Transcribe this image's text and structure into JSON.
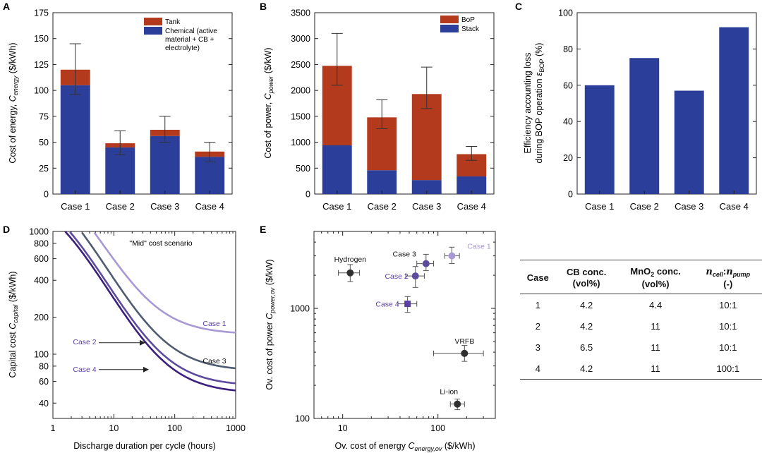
{
  "colors": {
    "stack_blue": "#2b3e9a",
    "top_red": "#b33a1c",
    "scatter_dark": "#2f2f2f",
    "line_case1": "#a898d4",
    "line_case2": "#5c4a9c",
    "line_case3": "#4e5b70",
    "line_case4": "#3b1f7e",
    "label_purple": "#5b3fa6"
  },
  "chart_data": [
    {
      "panel": "A",
      "type": "bar",
      "stacked": true,
      "categories": [
        "Case 1",
        "Case 2",
        "Case 3",
        "Case 4"
      ],
      "series": [
        {
          "name": "Chemical (active material + CB + electrolyte)",
          "values": [
            105,
            45,
            56,
            36
          ]
        },
        {
          "name": "Tank",
          "values": [
            15,
            4,
            6,
            5
          ]
        }
      ],
      "error_low": [
        96,
        38,
        50,
        31
      ],
      "error_high": [
        145,
        61,
        75,
        50
      ],
      "legend": [
        {
          "label": "Tank"
        },
        {
          "label": "Chemical (active"
        },
        {
          "label": "material + CB +"
        },
        {
          "label": "electrolyte)"
        }
      ],
      "ylabel": "Cost of energy,",
      "ylabel_var": "C",
      "ylabel_sub": "energy",
      "ylabel_unit": "($/kWh)",
      "ylim": [
        0,
        175
      ],
      "yticks": [
        0,
        25,
        50,
        75,
        100,
        125,
        150,
        175
      ]
    },
    {
      "panel": "B",
      "type": "bar",
      "stacked": true,
      "categories": [
        "Case 1",
        "Case 2",
        "Case 3",
        "Case 4"
      ],
      "series": [
        {
          "name": "Stack",
          "values": [
            940,
            460,
            270,
            340
          ]
        },
        {
          "name": "BoP",
          "values": [
            1535,
            1020,
            1660,
            430
          ]
        }
      ],
      "error_low": [
        2100,
        1260,
        1650,
        650
      ],
      "error_high": [
        3100,
        1820,
        2450,
        920
      ],
      "legend": [
        {
          "label": "BoP"
        },
        {
          "label": "Stack"
        }
      ],
      "ylabel": "Cost of power,",
      "ylabel_var": "C",
      "ylabel_sub": "power",
      "ylabel_unit": "($/kW)",
      "ylim": [
        0,
        3500
      ],
      "yticks": [
        0,
        500,
        1000,
        1500,
        2000,
        2500,
        3000,
        3500
      ]
    },
    {
      "panel": "C",
      "type": "bar",
      "categories": [
        "Case 1",
        "Case 2",
        "Case 3",
        "Case 4"
      ],
      "values": [
        60,
        75,
        57,
        92
      ],
      "ylabel1": "Efficiency accounting loss",
      "ylabel2": "during BOP operation",
      "ylabel2_var": "ε",
      "ylabel2_sub": "BOP",
      "ylabel2_unit": "(%)",
      "ylim": [
        0,
        100
      ],
      "yticks": [
        0,
        20,
        40,
        60,
        80,
        100
      ]
    },
    {
      "panel": "D",
      "type": "line",
      "xscale": "log",
      "yscale": "log",
      "annotation": "\"Mid\" cost scenario",
      "series": [
        {
          "name": "Case 1",
          "asymptote": 145,
          "k": 5000
        },
        {
          "name": "Case 2",
          "asymptote": 55,
          "k": 2900
        },
        {
          "name": "Case 3",
          "asymptote": 73,
          "k": 3800
        },
        {
          "name": "Case 4",
          "asymptote": 48,
          "k": 2650
        }
      ],
      "xlabel": "Discharge duration per cycle (hours)",
      "ylabel": "Capital cost",
      "ylabel_var": "C",
      "ylabel_sub": "capital",
      "ylabel_unit": "($/kWh)",
      "xlim": [
        1,
        1000
      ],
      "ylim": [
        30,
        1000
      ],
      "xticks": [
        1,
        10,
        100,
        1000
      ],
      "yticks": [
        40,
        60,
        80,
        100,
        200,
        400,
        600,
        800,
        1000
      ]
    },
    {
      "panel": "E",
      "type": "scatter",
      "xscale": "log",
      "yscale": "log",
      "points": [
        {
          "name": "Case 1",
          "x": 140,
          "y": 3000,
          "xerr": [
            118,
            168
          ],
          "yerr": [
            2550,
            3600
          ],
          "marker": "circle"
        },
        {
          "name": "Case 3",
          "x": 75,
          "y": 2550,
          "xerr": [
            60,
            90
          ],
          "yerr": [
            2200,
            3100
          ],
          "marker": "circle"
        },
        {
          "name": "Case 2",
          "x": 58,
          "y": 1970,
          "xerr": [
            46,
            72
          ],
          "yerr": [
            1550,
            2400
          ],
          "marker": "circle"
        },
        {
          "name": "Case 4",
          "x": 48,
          "y": 1100,
          "xerr": [
            38,
            60
          ],
          "yerr": [
            920,
            1280
          ],
          "marker": "square"
        },
        {
          "name": "Hydrogen",
          "x": 12,
          "y": 2100,
          "xerr": [
            9,
            15
          ],
          "yerr": [
            1750,
            2500
          ],
          "marker": "circle"
        },
        {
          "name": "VRFB",
          "x": 190,
          "y": 390,
          "xerr": [
            90,
            300
          ],
          "yerr": [
            330,
            460
          ],
          "marker": "circle"
        },
        {
          "name": "Li-ion",
          "x": 160,
          "y": 135,
          "xerr": [
            135,
            190
          ],
          "yerr": [
            120,
            150
          ],
          "marker": "circle"
        }
      ],
      "xlabel": "Ov. cost of energy",
      "xlabel_var": "C",
      "xlabel_sub": "energy,ov",
      "xlabel_unit": "($/kWh)",
      "ylabel": "Ov. cost of power",
      "ylabel_var": "C",
      "ylabel_sub": "power,ov",
      "ylabel_unit": "($/kW)",
      "xlim": [
        5,
        400
      ],
      "ylim": [
        100,
        5000
      ],
      "xticks": [
        10,
        100
      ],
      "yticks": [
        100,
        1000
      ]
    }
  ],
  "table": {
    "headers": {
      "case": "Case",
      "cb": "CB conc.",
      "cb_unit": "(vol%)",
      "mno2_a": "MnO",
      "mno2_sub": "2",
      "mno2_b": " conc.",
      "mno2_unit": "(vol%)",
      "ratio_n1": "n",
      "ratio_s1": "cell",
      "ratio_colon": ":",
      "ratio_n2": "n",
      "ratio_s2": "pump",
      "ratio_unit": "(-)"
    },
    "rows": [
      {
        "case": "1",
        "cb": "4.2",
        "mno2": "4.4",
        "ratio": "10:1"
      },
      {
        "case": "2",
        "cb": "4.2",
        "mno2": "11",
        "ratio": "10:1"
      },
      {
        "case": "3",
        "cb": "6.5",
        "mno2": "11",
        "ratio": "10:1"
      },
      {
        "case": "4",
        "cb": "4.2",
        "mno2": "11",
        "ratio": "100:1"
      }
    ]
  }
}
